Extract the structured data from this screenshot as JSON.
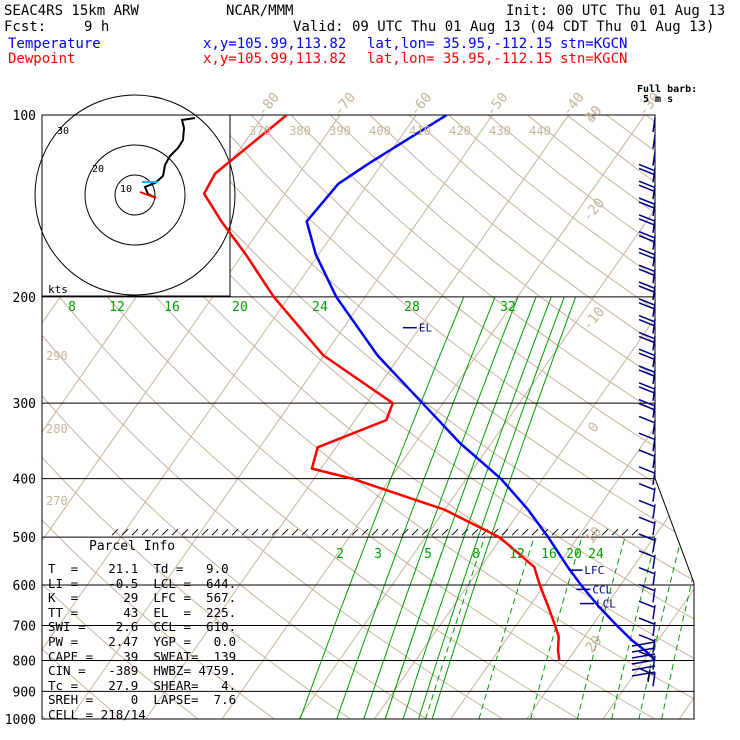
{
  "header": {
    "model": "SEAC4RS 15km ARW",
    "org": "NCAR/MMM",
    "init": "Init: 00 UTC Thu 01 Aug 13",
    "fcst_label": "Fcst:",
    "fcst_value": "9 h",
    "valid": "Valid: 09 UTC Thu 01 Aug 13 (04 CDT Thu 01 Aug 13)",
    "temp_label": "Temperature",
    "dew_label": "Dewpoint",
    "xy": "x,y=105.99,113.82",
    "latlon": "lat,lon= 35.95,-112.15",
    "stn": "stn=KGCN",
    "barb_title": "Full barb:",
    "barb_unit": "5 m s",
    "kts": "kts"
  },
  "parcel_info": {
    "title": "Parcel Info",
    "rows": [
      "T  =    21.1  Td =   9.0",
      "LI =    -0.5  LCL =  644.",
      "K  =      29  LFC =  567.",
      "TT =      43  EL  =  225.",
      "SWI =    2.6  CCL =  610.",
      "PW =    2.47  YGP =   0.0",
      "CAPE =    39  SWEAT=  139",
      "CIN =   -389  HWBZ= 4759.",
      "Tc =    27.9  SHEAR=   4.",
      "SREH =     0  LAPSE=  7.6",
      "CELL = 218/14"
    ]
  },
  "levels": {
    "el": "EL",
    "lfc": "LFC",
    "ccl": "CCL",
    "lcl": "LCL"
  },
  "colors": {
    "temperature": "#0000ff",
    "dewpoint": "#ff0000",
    "isotherm": "#c8b49b",
    "mixing_ratio": "#00a000",
    "isobar": "#000000",
    "barb": "#000080",
    "hodograph": "#000000"
  },
  "chart_data": {
    "type": "line",
    "title": "",
    "ylabel": "",
    "xlabel": "",
    "pressure_ticks": [
      100,
      200,
      300,
      400,
      500,
      600,
      700,
      800,
      900,
      1000
    ],
    "pressure_range": [
      1000,
      100
    ],
    "y_scale": "log",
    "isotherm_labels": [
      -80,
      -70,
      -60,
      -50,
      -40,
      -30,
      -20,
      -10,
      0,
      10,
      20,
      30,
      40
    ],
    "theta_labels": [
      370,
      380,
      390,
      400,
      410,
      420,
      430,
      440
    ],
    "theta_left_labels": [
      290,
      280,
      270
    ],
    "mixing_ratio_labels_upper": [
      8,
      12,
      16,
      20,
      24,
      28,
      32
    ],
    "mixing_ratio_labels_lower": [
      2,
      3,
      5,
      8,
      12,
      16,
      20,
      24
    ],
    "series": [
      {
        "name": "Temperature",
        "points": [
          [
            800,
            21.4
          ],
          [
            790,
            20.8
          ],
          [
            770,
            19.2
          ],
          [
            740,
            16.5
          ],
          [
            700,
            13.2
          ],
          [
            650,
            9.0
          ],
          [
            600,
            4.8
          ],
          [
            560,
            1.4
          ],
          [
            500,
            -3.9
          ],
          [
            450,
            -9.1
          ],
          [
            400,
            -15.5
          ],
          [
            350,
            -24.0
          ],
          [
            300,
            -32.7
          ],
          [
            250,
            -43.0
          ],
          [
            200,
            -53.8
          ],
          [
            170,
            -60.4
          ],
          [
            150,
            -64.6
          ],
          [
            130,
            -63.9
          ],
          [
            120,
            -61.7
          ],
          [
            100,
            -56.0
          ]
        ]
      },
      {
        "name": "Dewpoint",
        "points": [
          [
            800,
            8.9
          ],
          [
            770,
            7.8
          ],
          [
            730,
            6.6
          ],
          [
            700,
            5.1
          ],
          [
            650,
            2.4
          ],
          [
            600,
            -0.6
          ],
          [
            560,
            -3.0
          ],
          [
            500,
            -10.3
          ],
          [
            450,
            -20.1
          ],
          [
            400,
            -35.0
          ],
          [
            385,
            -41.2
          ],
          [
            355,
            -42.4
          ],
          [
            320,
            -35.9
          ],
          [
            300,
            -36.6
          ],
          [
            250,
            -50.1
          ],
          [
            200,
            -62.0
          ],
          [
            170,
            -69.6
          ],
          [
            150,
            -75.8
          ],
          [
            135,
            -80.6
          ],
          [
            125,
            -81.0
          ],
          [
            100,
            -77.0
          ]
        ]
      }
    ],
    "wind_unit": "5 m s-1 full barb",
    "hodograph_rings_kts": [
      10,
      20,
      30
    ],
    "hodograph_ring_labels": [
      "10",
      "20",
      "30"
    ]
  }
}
